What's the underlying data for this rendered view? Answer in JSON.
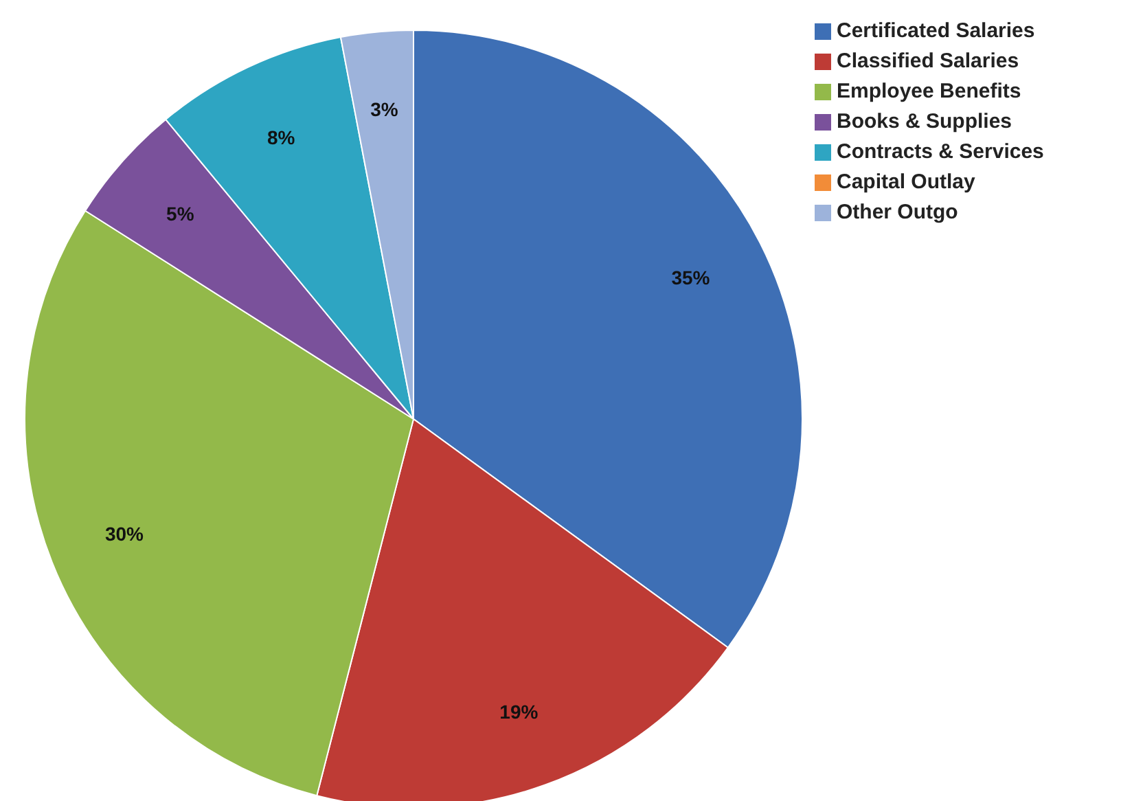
{
  "chart_data": {
    "type": "pie",
    "categories": [
      "Certificated Salaries",
      "Classified Salaries",
      "Employee Benefits",
      "Books & Supplies",
      "Contracts & Services",
      "Capital Outlay",
      "Other Outgo"
    ],
    "values": [
      35,
      19,
      30,
      5,
      8,
      0,
      3
    ],
    "value_labels": [
      "35%",
      "19%",
      "30%",
      "5%",
      "8%",
      null,
      "3%"
    ],
    "colors": [
      "#3e6fb5",
      "#be3b35",
      "#93b94a",
      "#7a519b",
      "#2ea5c2",
      "#f28c38",
      "#9db3db"
    ],
    "legend": "top right"
  }
}
